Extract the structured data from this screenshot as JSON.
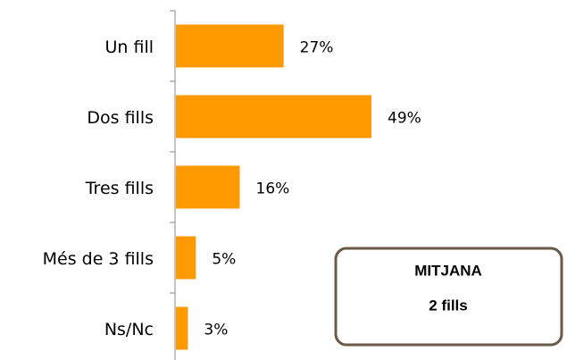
{
  "chart_data": {
    "type": "hbar",
    "categories": [
      "Un fill",
      "Dos fills",
      "Tres fills",
      "Més de 3 fills",
      "Ns/Nc"
    ],
    "values": [
      27,
      49,
      16,
      5,
      3
    ],
    "value_labels": [
      "27%",
      "49%",
      "16%",
      "5%",
      "3%"
    ],
    "color": "#ff9900",
    "annotation": {
      "title": "MITJANA",
      "text": "2 fills"
    }
  }
}
